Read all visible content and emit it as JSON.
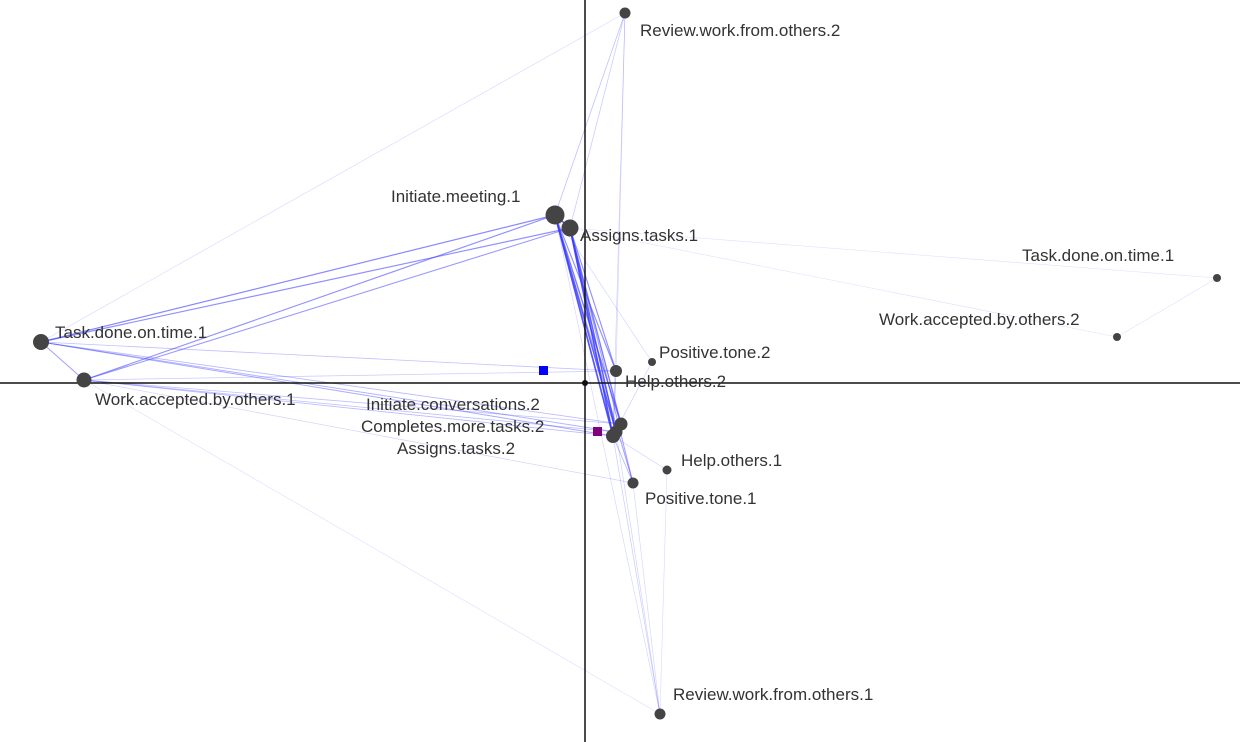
{
  "colors": {
    "background": "#ffffff",
    "axis": "#111111",
    "edge": "#3b3bff",
    "node": "#444444",
    "label": "#333333",
    "mean_square_1": "#0000ff",
    "mean_square_2": "#800080"
  },
  "nodes": [
    {
      "id": "n1",
      "label": "Review.work.from.others.2"
    },
    {
      "id": "n2",
      "label": "Initiate.meeting.1"
    },
    {
      "id": "n3",
      "label": "Assigns.tasks.1"
    },
    {
      "id": "n4",
      "label": "Task.done.on.time.1"
    },
    {
      "id": "n5",
      "label": "Work.accepted.by.others.2"
    },
    {
      "id": "n6",
      "label": "Task.done.on.time.1"
    },
    {
      "id": "n7",
      "label": "Work.accepted.by.others.1"
    },
    {
      "id": "n8",
      "label": "Positive.tone.2"
    },
    {
      "id": "n9",
      "label": "Help.others.2"
    },
    {
      "id": "n10",
      "label": "Initiate.conversations.2"
    },
    {
      "id": "n11",
      "label": "Completes.more.tasks.2"
    },
    {
      "id": "n12",
      "label": "Assigns.tasks.2"
    },
    {
      "id": "n13",
      "label": "Help.others.1"
    },
    {
      "id": "n14",
      "label": "Positive.tone.1"
    },
    {
      "id": "n15",
      "label": "Review.work.from.others.1"
    }
  ],
  "edges": [
    {
      "from": "n2",
      "to": "n12",
      "weight": 0.95
    },
    {
      "from": "n3",
      "to": "n12",
      "weight": 0.95
    },
    {
      "from": "n2",
      "to": "n11",
      "weight": 0.85
    },
    {
      "from": "n3",
      "to": "n11",
      "weight": 0.85
    },
    {
      "from": "n2",
      "to": "n10",
      "weight": 0.7
    },
    {
      "from": "n3",
      "to": "n10",
      "weight": 0.7
    },
    {
      "from": "n2",
      "to": "n9",
      "weight": 0.55
    },
    {
      "from": "n3",
      "to": "n9",
      "weight": 0.55
    },
    {
      "from": "n2",
      "to": "n14",
      "weight": 0.45
    },
    {
      "from": "n3",
      "to": "n14",
      "weight": 0.45
    },
    {
      "from": "n2",
      "to": "n3",
      "weight": 0.9
    },
    {
      "from": "n6",
      "to": "n2",
      "weight": 0.6
    },
    {
      "from": "n6",
      "to": "n3",
      "weight": 0.55
    },
    {
      "from": "n7",
      "to": "n2",
      "weight": 0.55
    },
    {
      "from": "n7",
      "to": "n3",
      "weight": 0.5
    },
    {
      "from": "n6",
      "to": "n7",
      "weight": 0.45
    },
    {
      "from": "n6",
      "to": "n12",
      "weight": 0.4
    },
    {
      "from": "n6",
      "to": "n11",
      "weight": 0.35
    },
    {
      "from": "n6",
      "to": "n10",
      "weight": 0.3
    },
    {
      "from": "n7",
      "to": "n12",
      "weight": 0.3
    },
    {
      "from": "n7",
      "to": "n11",
      "weight": 0.28
    },
    {
      "from": "n7",
      "to": "n10",
      "weight": 0.25
    },
    {
      "from": "n6",
      "to": "n9",
      "weight": 0.25
    },
    {
      "from": "n7",
      "to": "n9",
      "weight": 0.2
    },
    {
      "from": "n1",
      "to": "n2",
      "weight": 0.25
    },
    {
      "from": "n1",
      "to": "n3",
      "weight": 0.2
    },
    {
      "from": "n1",
      "to": "n12",
      "weight": 0.15
    },
    {
      "from": "n1",
      "to": "n9",
      "weight": 0.12
    },
    {
      "from": "n1",
      "to": "n6",
      "weight": 0.1
    },
    {
      "from": "n15",
      "to": "n12",
      "weight": 0.18
    },
    {
      "from": "n15",
      "to": "n11",
      "weight": 0.15
    },
    {
      "from": "n15",
      "to": "n2",
      "weight": 0.12
    },
    {
      "from": "n15",
      "to": "n13",
      "weight": 0.1
    },
    {
      "from": "n15",
      "to": "n7",
      "weight": 0.08
    },
    {
      "from": "n15",
      "to": "n14",
      "weight": 0.12
    },
    {
      "from": "n14",
      "to": "n12",
      "weight": 0.3
    },
    {
      "from": "n14",
      "to": "n7",
      "weight": 0.15
    },
    {
      "from": "n13",
      "to": "n12",
      "weight": 0.15
    },
    {
      "from": "n8",
      "to": "n2",
      "weight": 0.12
    },
    {
      "from": "n8",
      "to": "n12",
      "weight": 0.15
    },
    {
      "from": "n9",
      "to": "n12",
      "weight": 0.3
    },
    {
      "from": "n4",
      "to": "n3",
      "weight": 0.06
    },
    {
      "from": "n5",
      "to": "n3",
      "weight": 0.06
    },
    {
      "from": "n4",
      "to": "n5",
      "weight": 0.06
    },
    {
      "from": "n10",
      "to": "n11",
      "weight": 0.2
    }
  ]
}
